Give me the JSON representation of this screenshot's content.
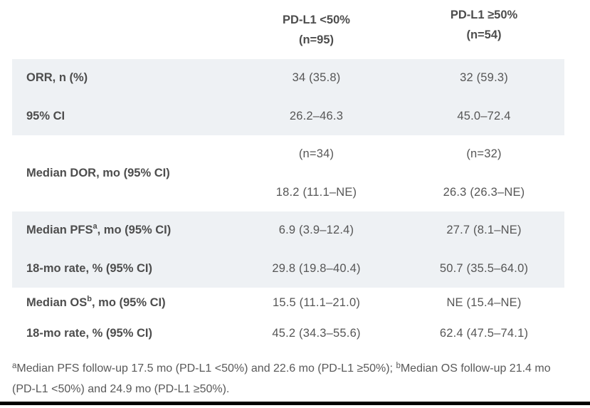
{
  "table": {
    "band_color": "#eef1f4",
    "text_color": "#4f4f4f",
    "columns": [
      {
        "line1": "PD-L1 <50%",
        "line2": "(n=95)"
      },
      {
        "line1": "PD-L1 ≥50%",
        "line2": "(n=54)"
      }
    ],
    "sections": [
      {
        "shaded": true,
        "rows": [
          {
            "label": "ORR, n (%)",
            "col1": "34 (35.8)",
            "col2": "32 (59.3)"
          },
          {
            "label": "95% CI",
            "col1": "26.2–46.3",
            "col2": "45.0–72.4"
          }
        ]
      },
      {
        "shaded": false,
        "merged_label": "Median DOR, mo (95% CI)",
        "rows": [
          {
            "col1": "(n=34)",
            "col2": "(n=32)"
          },
          {
            "col1": "18.2 (11.1–NE)",
            "col2": "26.3 (26.3–NE)"
          }
        ]
      },
      {
        "shaded": true,
        "rows": [
          {
            "label_prefix": "Median PFS",
            "label_sup": "a",
            "label_suffix": ", mo (95% CI)",
            "col1": "6.9 (3.9–12.4)",
            "col2": "27.7 (8.1–NE)"
          },
          {
            "label": "18-mo rate, % (95% CI)",
            "col1": "29.8 (19.8–40.4)",
            "col2": "50.7 (35.5–64.0)"
          }
        ]
      },
      {
        "shaded": false,
        "rows": [
          {
            "label_prefix": "Median OS",
            "label_sup": "b",
            "label_suffix": ", mo (95% CI)",
            "col1": "15.5 (11.1–21.0)",
            "col2": "NE (15.4–NE)"
          },
          {
            "label": "18-mo rate, % (95% CI)",
            "col1": "45.2 (34.3–55.6)",
            "col2": "62.4 (47.5–74.1)"
          }
        ]
      }
    ]
  },
  "footnote": {
    "sup_a": "a",
    "part_a": "Median PFS follow-up 17.5 mo (PD-L1 <50%) and 22.6 mo (PD-L1 ≥50%); ",
    "sup_b": "b",
    "part_b": "Median OS follow-up 21.4 mo (PD-L1 <50%) and 24.9 mo (PD-L1 ≥50%)."
  },
  "chart_data": {
    "type": "table",
    "title": "",
    "columns": [
      "",
      "PD-L1 <50% (n=95)",
      "PD-L1 ≥50% (n=54)"
    ],
    "rows": [
      [
        "ORR, n (%)",
        "34 (35.8)",
        "32 (59.3)"
      ],
      [
        "95% CI",
        "26.2–46.3",
        "45.0–72.4"
      ],
      [
        "Median DOR, mo (95% CI)",
        "(n=34) 18.2 (11.1–NE)",
        "(n=32) 26.3 (26.3–NE)"
      ],
      [
        "Median PFS(a), mo (95% CI)",
        "6.9 (3.9–12.4)",
        "27.7 (8.1–NE)"
      ],
      [
        "18-mo rate, % (95% CI)",
        "29.8 (19.8–40.4)",
        "50.7 (35.5–64.0)"
      ],
      [
        "Median OS(b), mo (95% CI)",
        "15.5 (11.1–21.0)",
        "NE (15.4–NE)"
      ],
      [
        "18-mo rate, % (95% CI)",
        "45.2 (34.3–55.6)",
        "62.4 (47.5–74.1)"
      ]
    ]
  }
}
